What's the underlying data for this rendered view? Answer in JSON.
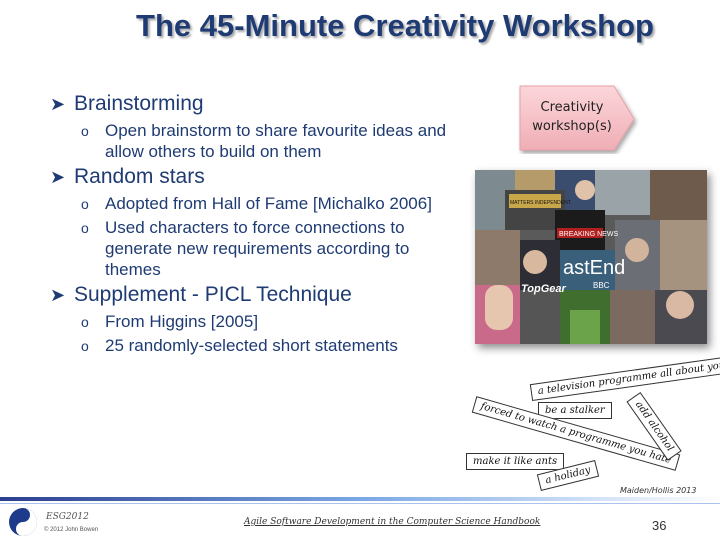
{
  "title": "The 45-Minute Creativity Workshop",
  "bullets": [
    {
      "label": "Brainstorming",
      "subs": [
        "Open brainstorm to share favourite ideas and allow others to build on them"
      ]
    },
    {
      "label": "Random stars",
      "subs": [
        "Adopted from Hall of Fame [Michalko 2006]",
        "Used characters to force connections to generate new requirements according to themes"
      ]
    },
    {
      "label": "Supplement - PICL Technique",
      "subs": [
        "From Higgins [2005]",
        "25 randomly-selected short statements"
      ]
    }
  ],
  "callout": {
    "line1": "Creativity",
    "line2": "workshop(s)"
  },
  "collage": {
    "text_tv": "BREAKING NEWS",
    "text_eastenders": "astEnd",
    "text_topgear": "TopGear",
    "text_bbc": "BBC",
    "text_independent": "MATTERS INDEPENDENT"
  },
  "strips": [
    "a television programme all about you",
    "be a stalker",
    "forced to watch a programme you hate",
    "add alcohol",
    "make it like ants",
    "a holiday"
  ],
  "credit": "Maiden/Hollis 2013",
  "footer": {
    "conference": "ESG2012",
    "copyright": "© 2012  John Bowen",
    "title": "Agile Software Development in the Computer Science Handbook",
    "page_number": "36"
  },
  "colors": {
    "title": "#1f3b73",
    "callout_fill": "#f5c1c7",
    "footer_accent": "#2b3f8f"
  }
}
